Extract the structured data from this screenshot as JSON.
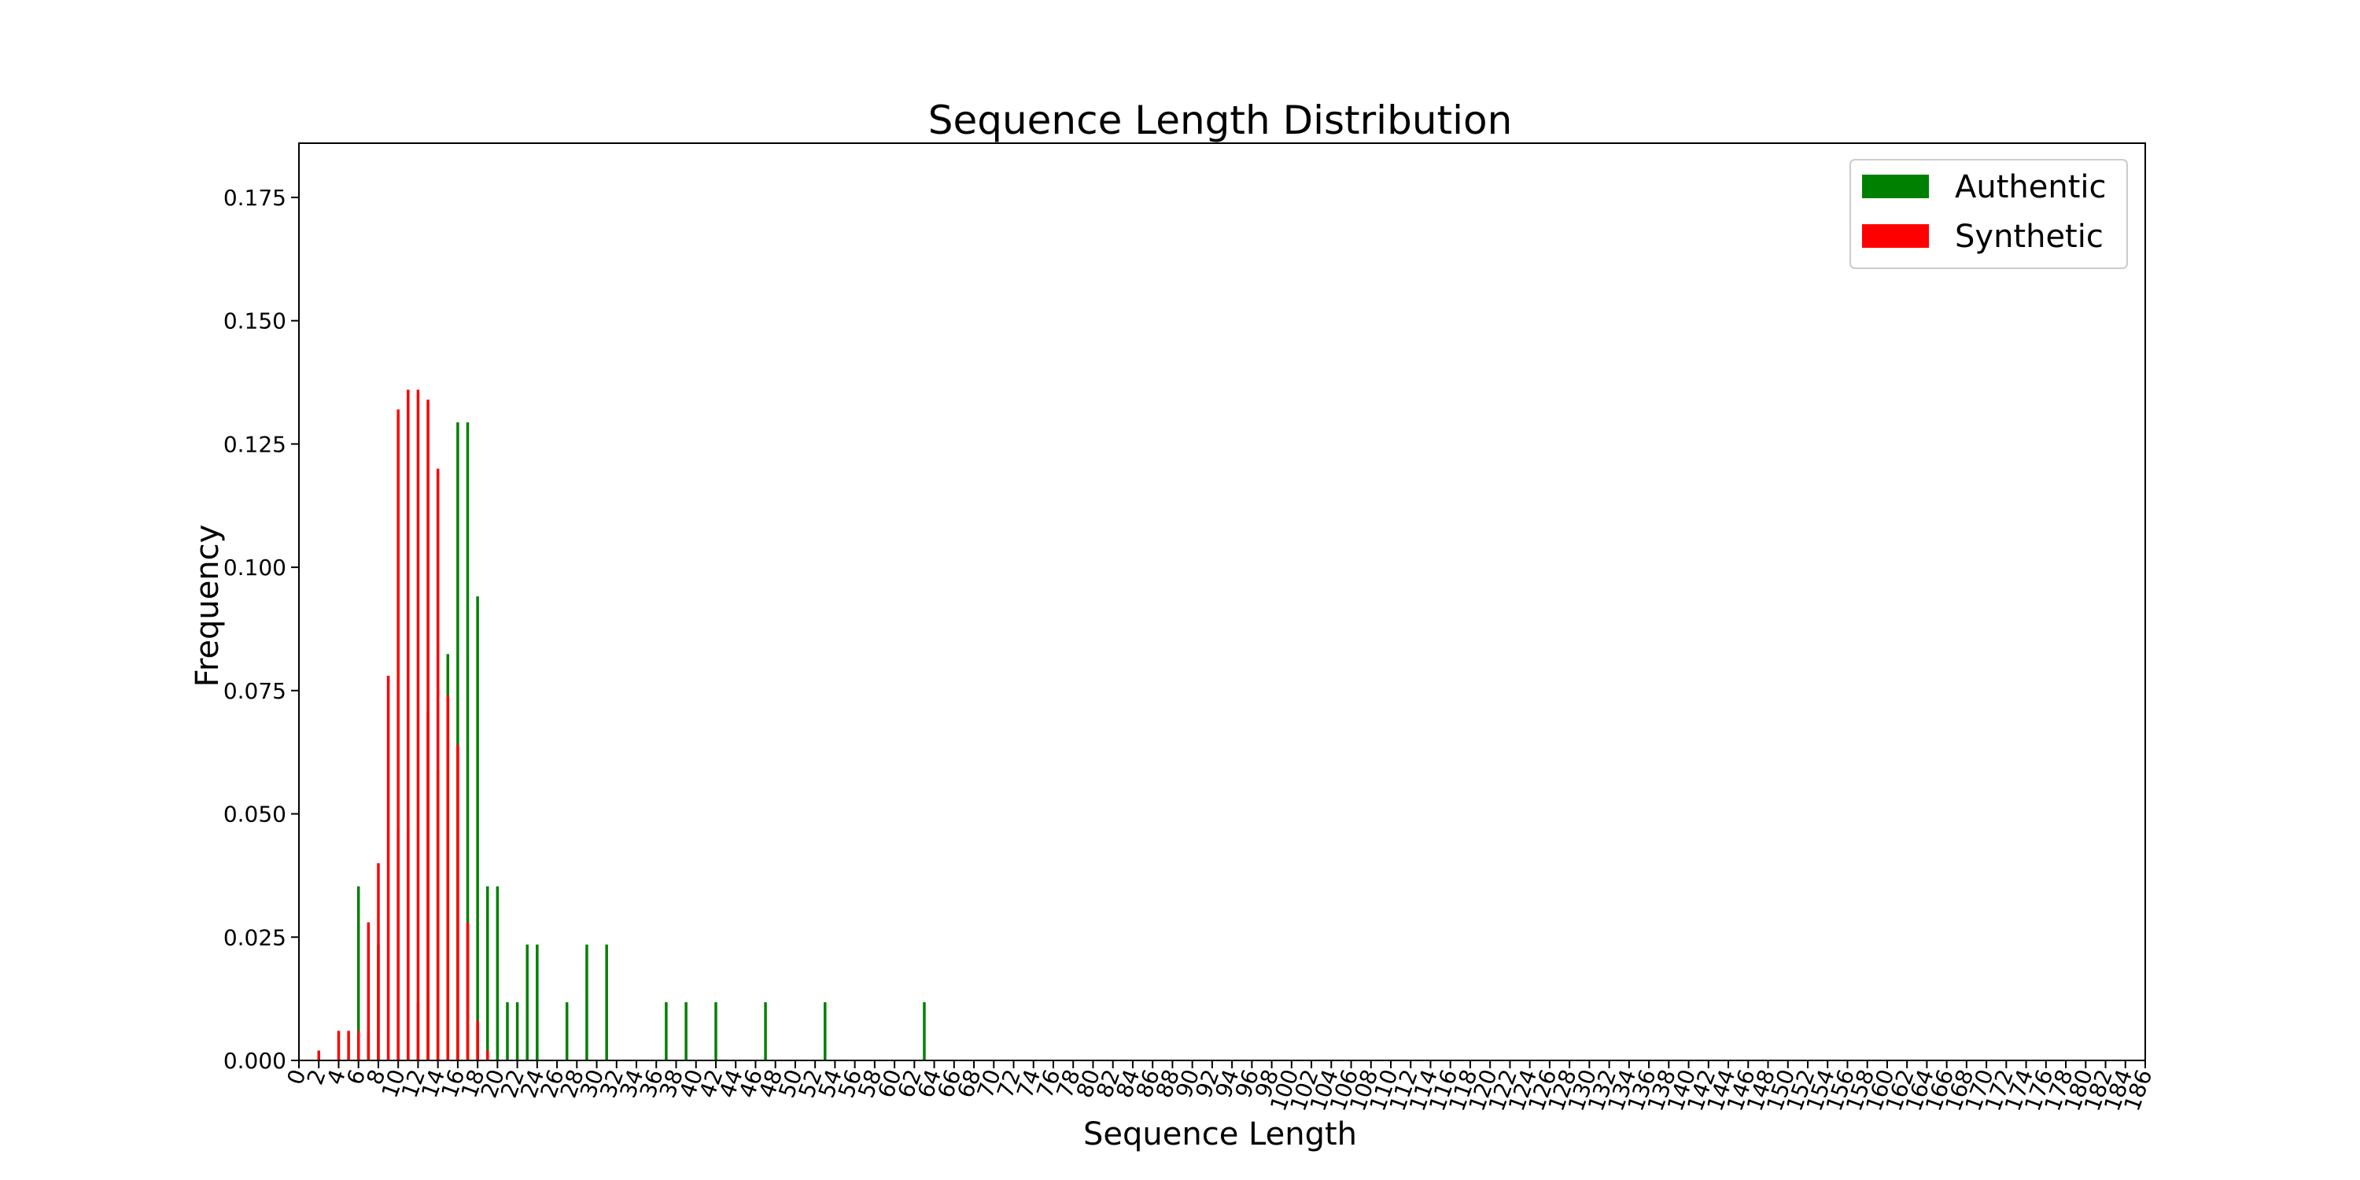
{
  "chart_data": {
    "type": "bar",
    "title": "Sequence Length Distribution",
    "xlabel": "Sequence Length",
    "ylabel": "Frequency",
    "xlim": [
      0,
      186
    ],
    "ylim": [
      0,
      0.186
    ],
    "xticks": [
      0,
      2,
      4,
      6,
      8,
      10,
      12,
      14,
      16,
      18,
      20,
      22,
      24,
      26,
      28,
      30,
      32,
      34,
      36,
      38,
      40,
      42,
      44,
      46,
      48,
      50,
      52,
      54,
      56,
      58,
      60,
      62,
      64,
      66,
      68,
      70,
      72,
      74,
      76,
      78,
      80,
      82,
      84,
      86,
      88,
      90,
      92,
      94,
      96,
      98,
      100,
      102,
      104,
      106,
      108,
      110,
      112,
      114,
      116,
      118,
      120,
      122,
      124,
      126,
      128,
      130,
      132,
      134,
      136,
      138,
      140,
      142,
      144,
      146,
      148,
      150,
      152,
      154,
      156,
      158,
      160,
      162,
      164,
      166,
      168,
      170,
      172,
      174,
      176,
      178,
      180,
      182,
      184,
      186
    ],
    "yticks": [
      "0.000",
      "0.025",
      "0.050",
      "0.075",
      "0.100",
      "0.125",
      "0.150",
      "0.175"
    ],
    "legend_position": "top-right",
    "series": [
      {
        "name": "Authentic",
        "color": "#008000",
        "points": [
          [
            6,
            0.0353
          ],
          [
            7,
            0.0059
          ],
          [
            8,
            0.0235
          ],
          [
            10,
            0.0471
          ],
          [
            11,
            0.0471
          ],
          [
            12,
            0.0118
          ],
          [
            13,
            0.0706
          ],
          [
            14,
            0.0588
          ],
          [
            15,
            0.0824
          ],
          [
            16,
            0.1294
          ],
          [
            17,
            0.1294
          ],
          [
            18,
            0.0941
          ],
          [
            19,
            0.0353
          ],
          [
            20,
            0.0353
          ],
          [
            21,
            0.0118
          ],
          [
            22,
            0.0118
          ],
          [
            23,
            0.0235
          ],
          [
            24,
            0.0235
          ],
          [
            27,
            0.0118
          ],
          [
            29,
            0.0235
          ],
          [
            31,
            0.0235
          ],
          [
            37,
            0.0118
          ],
          [
            39,
            0.0118
          ],
          [
            42,
            0.0118
          ],
          [
            47,
            0.0118
          ],
          [
            53,
            0.0118
          ],
          [
            63,
            0.0118
          ]
        ]
      },
      {
        "name": "Synthetic",
        "color": "#ff0000",
        "points": [
          [
            3,
            0.002
          ],
          [
            5,
            0.006
          ],
          [
            6,
            0.006
          ],
          [
            7,
            0.006
          ],
          [
            8,
            0.028
          ],
          [
            9,
            0.04
          ],
          [
            10,
            0.078
          ],
          [
            11,
            0.132
          ],
          [
            12,
            0.136
          ],
          [
            13,
            0.136
          ],
          [
            14,
            0.134
          ],
          [
            15,
            0.12
          ],
          [
            16,
            0.074
          ],
          [
            17,
            0.064
          ],
          [
            18,
            0.028
          ],
          [
            19,
            0.008
          ],
          [
            20,
            0.002
          ]
        ]
      }
    ]
  }
}
